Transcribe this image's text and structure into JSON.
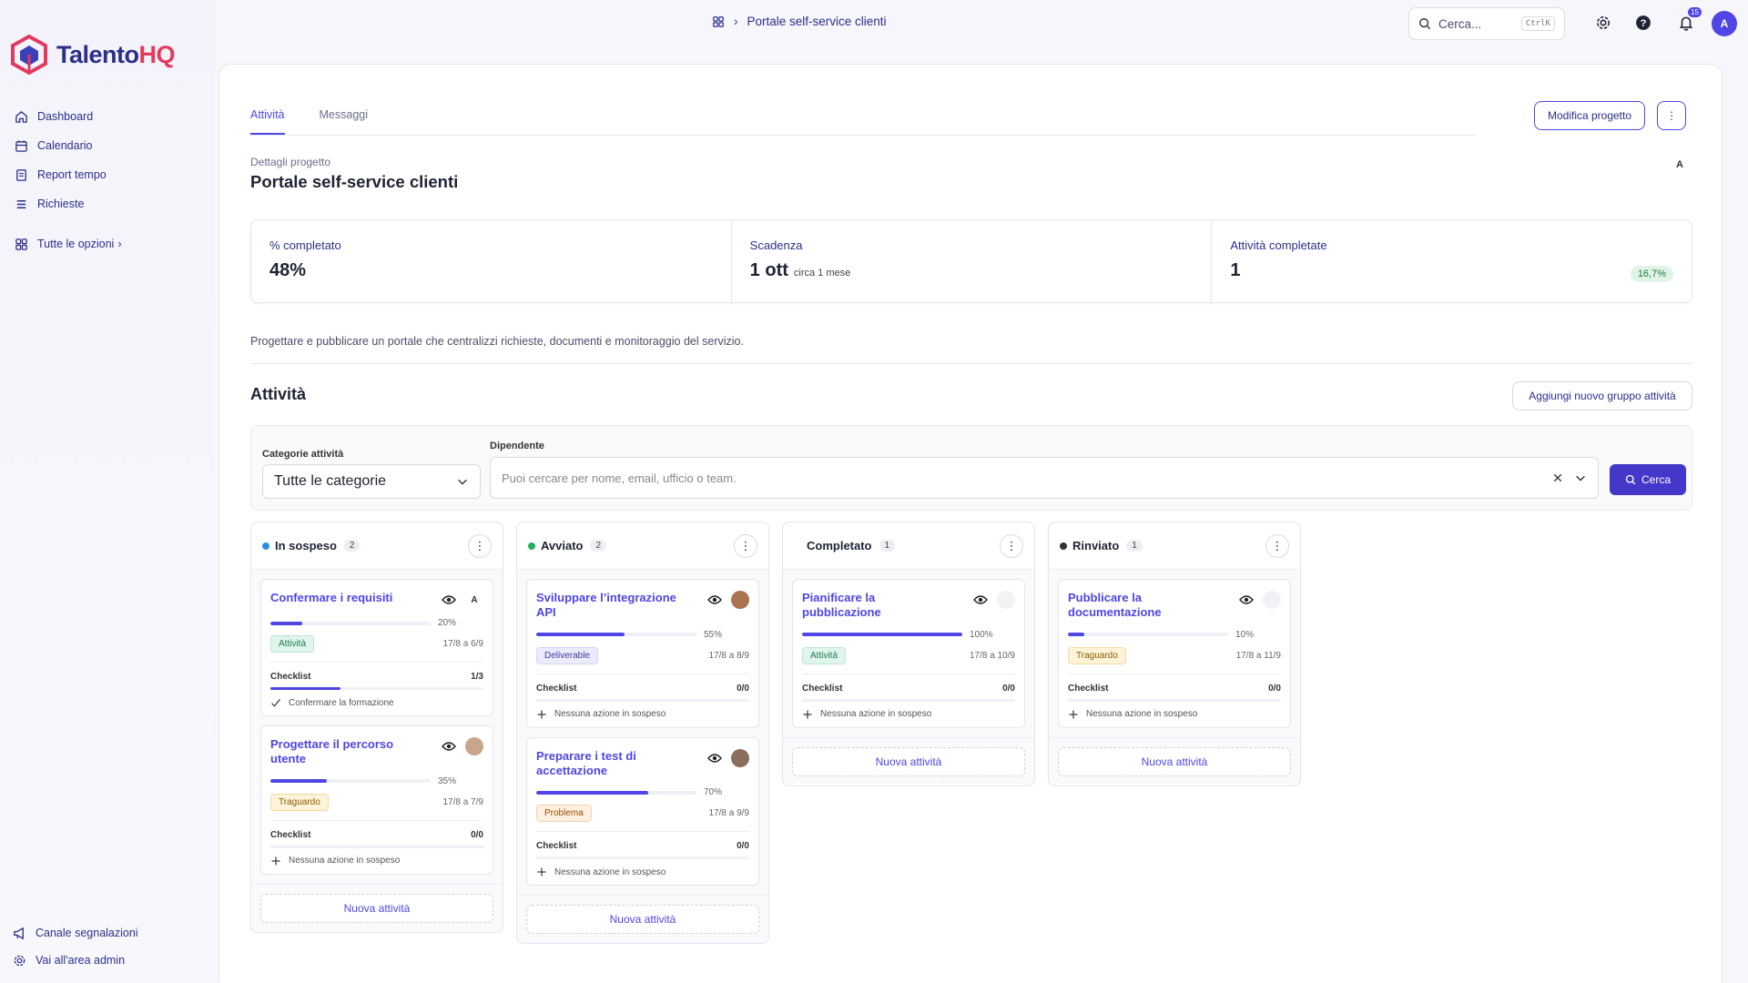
{
  "brand": {
    "name_part1": "Talento",
    "name_part2": "HQ"
  },
  "sidebar": {
    "items": [
      {
        "label": "Dashboard",
        "icon": "home-icon"
      },
      {
        "label": "Calendario",
        "icon": "calendar-icon"
      },
      {
        "label": "Report tempo",
        "icon": "report-icon"
      },
      {
        "label": "Richieste",
        "icon": "list-icon"
      }
    ],
    "all_options": "Tutte le opzioni",
    "bottom": [
      {
        "label": "Canale segnalazioni",
        "icon": "megaphone-icon"
      },
      {
        "label": "Vai all'area admin",
        "icon": "gear-icon"
      }
    ]
  },
  "topbar": {
    "breadcrumb": "Portale self-service clienti",
    "search_placeholder": "Cerca...",
    "shortcut": "CtrlK",
    "notifications_count": "15",
    "avatar_initial": "A"
  },
  "project": {
    "tabs": [
      "Attività",
      "Messaggi"
    ],
    "edit_button": "Modifica progetto",
    "subtitle": "Dettagli progetto",
    "title": "Portale self-service clienti",
    "owner_initial": "A",
    "stats": [
      {
        "label": "% completato",
        "value": "48%"
      },
      {
        "label": "Scadenza",
        "value": "1 ott",
        "sub": "circa 1 mese"
      },
      {
        "label": "Attività completate",
        "value": "1",
        "badge": "16,7%"
      }
    ],
    "description": "Progettare e pubblicare un portale che centralizzi richieste, documenti e monitoraggio del servizio."
  },
  "tasks": {
    "title": "Attività",
    "add_group_button": "Aggiungi nuovo gruppo attività",
    "filter": {
      "category_label": "Categorie attività",
      "category_value": "Tutte le categorie",
      "employee_label": "Dipendente",
      "employee_placeholder": "Puoi cercare per nome, email, ufficio o team.",
      "search_button": "Cerca"
    },
    "new_task_label": "Nuova attività",
    "columns": [
      {
        "title": "In sospeso",
        "count": "2",
        "dot": "#2b8fe0",
        "cards": [
          {
            "title": "Confermare i requisiti",
            "avatar": "A",
            "progress": 20,
            "progress_label": "20%",
            "tag": "Attività",
            "tag_color": "green",
            "dates": "17/8 a 6/9",
            "checklist_label": "Checklist",
            "checklist_count": "1/3",
            "checklist_progress": 33,
            "item": "Confermare la formazione",
            "item_icon": "check-icon"
          },
          {
            "title": "Progettare il percorso utente",
            "avatar": "",
            "progress": 35,
            "progress_label": "35%",
            "tag": "Traguardo",
            "tag_color": "yellow",
            "dates": "17/8 a 7/9",
            "checklist_label": "Checklist",
            "checklist_count": "0/0",
            "checklist_progress": 0,
            "item": "Nessuna azione in sospeso",
            "item_icon": "plus-icon"
          }
        ]
      },
      {
        "title": "Avviato",
        "count": "2",
        "dot": "#22b35e",
        "cards": [
          {
            "title": "Sviluppare l’integrazione API",
            "avatar": "",
            "progress": 55,
            "progress_label": "55%",
            "tag": "Deliverable",
            "tag_color": "purple",
            "dates": "17/8 a 8/9",
            "checklist_label": "Checklist",
            "checklist_count": "0/0",
            "checklist_progress": 0,
            "item": "Nessuna azione in sospeso",
            "item_icon": "plus-icon"
          },
          {
            "title": "Preparare i test di accettazione",
            "avatar": "",
            "progress": 70,
            "progress_label": "70%",
            "tag": "Problema",
            "tag_color": "orange",
            "dates": "17/8 a 9/9",
            "checklist_label": "Checklist",
            "checklist_count": "0/0",
            "checklist_progress": 0,
            "item": "Nessuna azione in sospeso",
            "item_icon": "plus-icon"
          }
        ]
      },
      {
        "title": "Completato",
        "count": "1",
        "dot": "",
        "cards": [
          {
            "title": "Pianificare la pubblicazione",
            "avatar": "",
            "progress": 100,
            "progress_label": "100%",
            "tag": "Attività",
            "tag_color": "green",
            "dates": "17/8 a 10/9",
            "checklist_label": "Checklist",
            "checklist_count": "0/0",
            "checklist_progress": 0,
            "item": "Nessuna azione in sospeso",
            "item_icon": "plus-icon"
          }
        ]
      },
      {
        "title": "Rinviato",
        "count": "1",
        "dot": "#333333",
        "cards": [
          {
            "title": "Pubblicare la documentazione",
            "avatar": "",
            "progress": 10,
            "progress_label": "10%",
            "tag": "Traguardo",
            "tag_color": "yellow",
            "dates": "17/8 a 11/9",
            "checklist_label": "Checklist",
            "checklist_count": "0/0",
            "checklist_progress": 0,
            "item": "Nessuna azione in sospeso",
            "item_icon": "plus-icon"
          }
        ]
      }
    ]
  }
}
